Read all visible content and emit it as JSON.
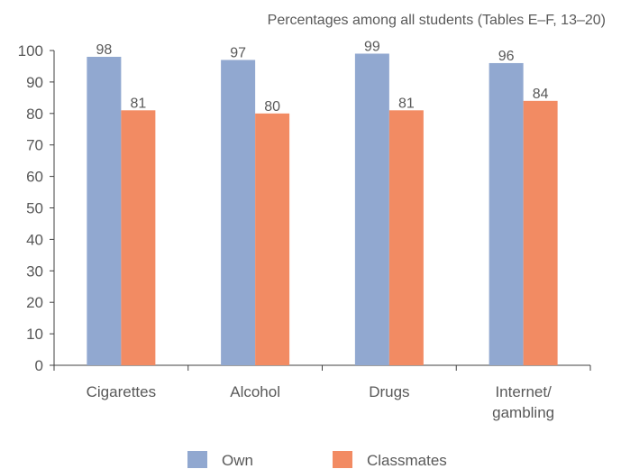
{
  "subtitle": "Percentages among all students (Tables E–F, 13–20)",
  "chart_data": {
    "type": "bar",
    "subtitle": "Percentages among all students (Tables E–F, 13–20)",
    "categories": [
      [
        "Cigarettes"
      ],
      [
        "Alcohol"
      ],
      [
        "Drugs"
      ],
      [
        "Internet/",
        "gambling"
      ]
    ],
    "series": [
      {
        "name": "Own",
        "values": [
          98,
          97,
          99,
          96
        ],
        "color": "#91a8d0"
      },
      {
        "name": "Classmates",
        "values": [
          81,
          80,
          81,
          84
        ],
        "color": "#f28b63"
      }
    ],
    "ylim": [
      0,
      100
    ],
    "yticks": [
      0,
      10,
      20,
      30,
      40,
      50,
      60,
      70,
      80,
      90,
      100
    ],
    "grid": false,
    "legend_position": "bottom"
  }
}
